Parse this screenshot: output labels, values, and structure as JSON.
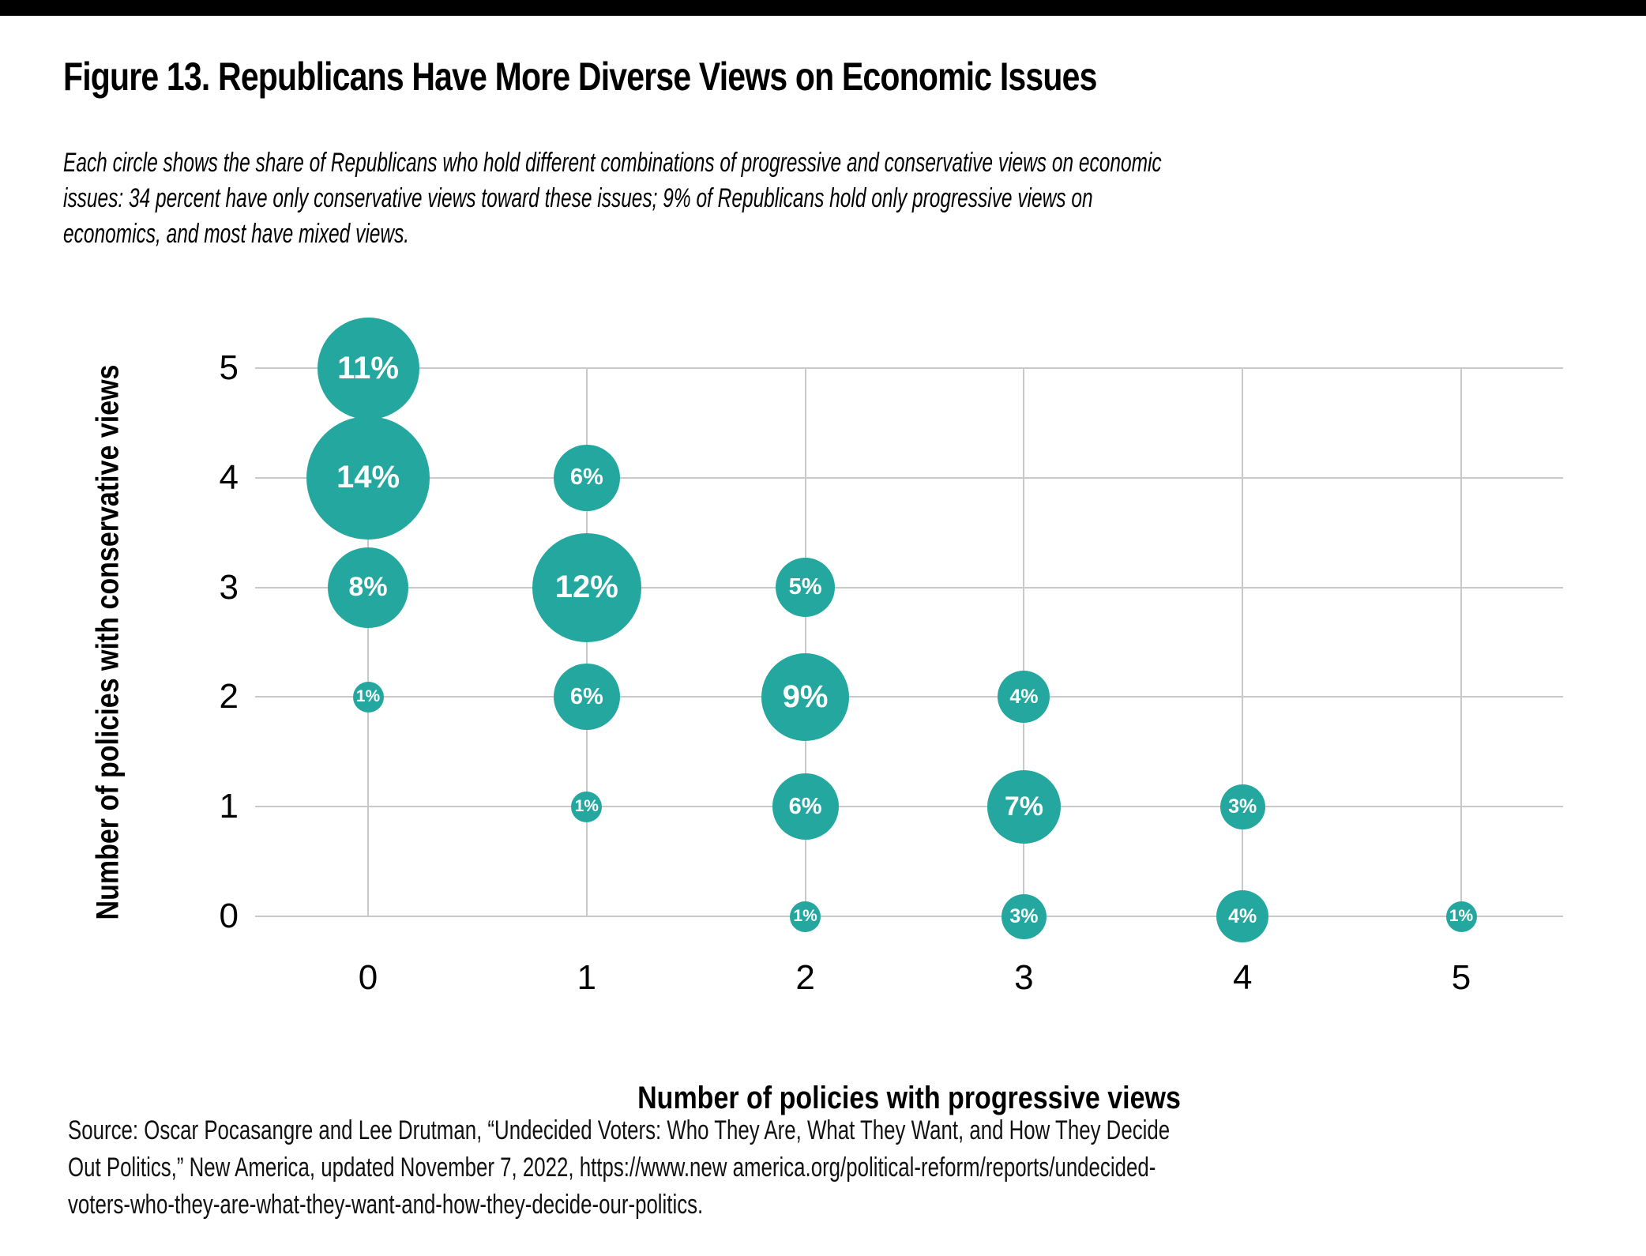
{
  "figure": {
    "title": "Figure 13. Republicans Have More Diverse Views on Economic Issues",
    "subtitle": "Each circle shows the share of Republicans who hold different combinations of progressive and conservative views on economic\nissues: 34 percent have only conservative views toward these issues; 9% of Republicans hold only progressive views on\neconomics, and most have mixed views."
  },
  "chart_data": {
    "type": "scatter",
    "subtype": "bubble",
    "xlabel": "Number of policies with progressive views",
    "ylabel": "Number of policies with conservative views",
    "x_ticks": [
      "0",
      "1",
      "2",
      "3",
      "4",
      "5"
    ],
    "y_ticks": [
      "0",
      "1",
      "2",
      "3",
      "4",
      "5"
    ],
    "xlim": [
      0,
      5
    ],
    "ylim": [
      0,
      5
    ],
    "grid": true,
    "legend": "none",
    "bubble_color": "#24a79e",
    "label_color": "#ffffff",
    "gridline_color": "#c9c9c9",
    "size_encoding": "share of Republicans (percent)",
    "points": [
      {
        "x": 0,
        "y": 5,
        "value": 11,
        "label": "11%"
      },
      {
        "x": 0,
        "y": 4,
        "value": 14,
        "label": "14%"
      },
      {
        "x": 0,
        "y": 3,
        "value": 8,
        "label": "8%"
      },
      {
        "x": 0,
        "y": 2,
        "value": 1,
        "label": "1%"
      },
      {
        "x": 1,
        "y": 4,
        "value": 6,
        "label": "6%"
      },
      {
        "x": 1,
        "y": 3,
        "value": 12,
        "label": "12%"
      },
      {
        "x": 1,
        "y": 2,
        "value": 6,
        "label": "6%"
      },
      {
        "x": 1,
        "y": 1,
        "value": 1,
        "label": "1%"
      },
      {
        "x": 2,
        "y": 3,
        "value": 5,
        "label": "5%"
      },
      {
        "x": 2,
        "y": 2,
        "value": 9,
        "label": "9%"
      },
      {
        "x": 2,
        "y": 1,
        "value": 6,
        "label": "6%"
      },
      {
        "x": 2,
        "y": 0,
        "value": 1,
        "label": "1%"
      },
      {
        "x": 3,
        "y": 2,
        "value": 4,
        "label": "4%"
      },
      {
        "x": 3,
        "y": 1,
        "value": 7,
        "label": "7%"
      },
      {
        "x": 3,
        "y": 0,
        "value": 3,
        "label": "3%"
      },
      {
        "x": 4,
        "y": 1,
        "value": 3,
        "label": "3%"
      },
      {
        "x": 4,
        "y": 0,
        "value": 4,
        "label": "4%"
      },
      {
        "x": 5,
        "y": 0,
        "value": 1,
        "label": "1%"
      }
    ]
  },
  "source": "Source: Oscar Pocasangre and Lee Drutman, “Undecided Voters: Who They Are, What They Want, and How They Decide\nOut Politics,” New America, updated November 7, 2022, https://www.new america.org/political-reform/reports/undecided-\nvoters-who-they-are-what-they-want-and-how-they-decide-our-politics."
}
